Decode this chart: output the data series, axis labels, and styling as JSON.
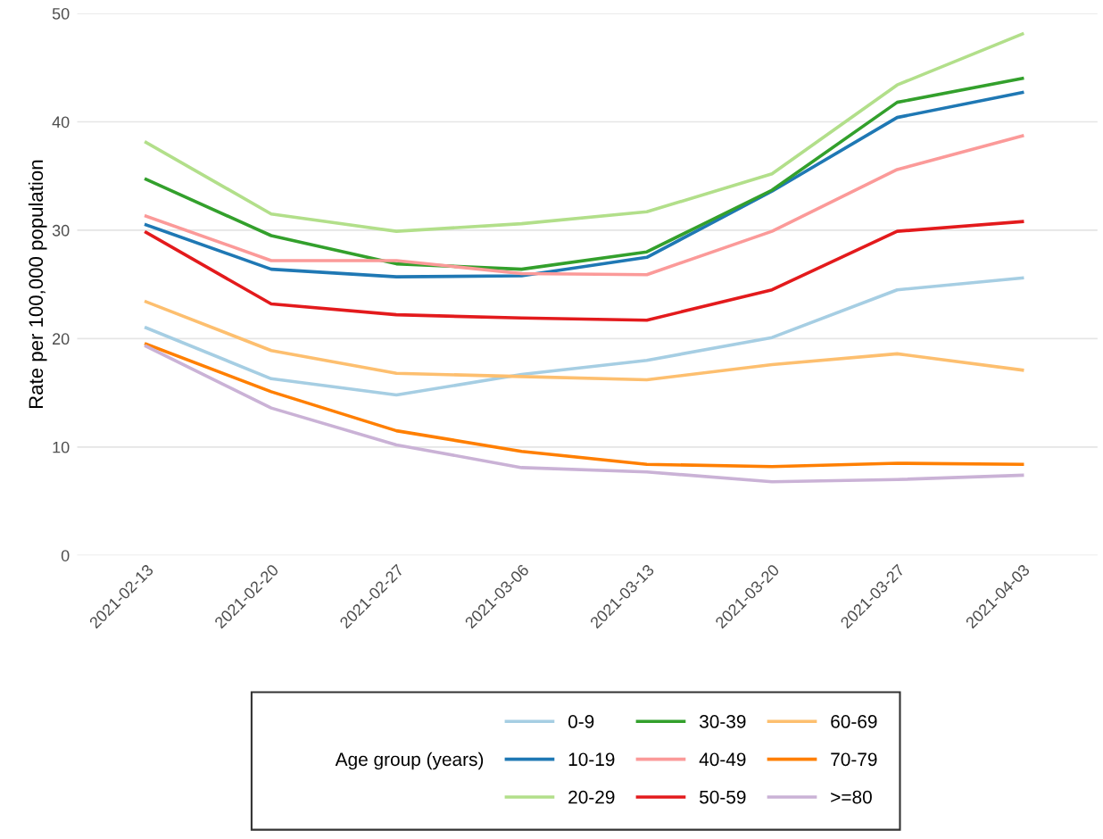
{
  "chart_data": {
    "type": "line",
    "ylabel": "Rate per 100,000 population",
    "legend_title": "Age group (years)",
    "categories": [
      "2021-02-13",
      "2021-02-20",
      "2021-02-27",
      "2021-03-06",
      "2021-03-13",
      "2021-03-20",
      "2021-03-27",
      "2021-04-03"
    ],
    "ylim": [
      0,
      50
    ],
    "yticks": [
      0,
      10,
      20,
      30,
      40,
      50
    ],
    "grid": "y",
    "legend": "bottom",
    "line_style": "solid",
    "marker": "none",
    "series": [
      {
        "name": "0-9",
        "color": "#a6cee3",
        "values": [
          21.0,
          16.3,
          14.8,
          16.7,
          18.0,
          20.1,
          24.5,
          25.6
        ]
      },
      {
        "name": "10-19",
        "color": "#1f78b4",
        "values": [
          30.5,
          26.4,
          25.7,
          25.8,
          27.5,
          33.6,
          40.4,
          42.7
        ]
      },
      {
        "name": "20-29",
        "color": "#b2df8a",
        "values": [
          38.1,
          31.5,
          29.9,
          30.6,
          31.7,
          35.2,
          43.4,
          48.1
        ]
      },
      {
        "name": "30-39",
        "color": "#33a02c",
        "values": [
          34.7,
          29.5,
          26.9,
          26.4,
          28.0,
          33.7,
          41.8,
          44.0
        ]
      },
      {
        "name": "40-49",
        "color": "#fb9a99",
        "values": [
          31.3,
          27.2,
          27.2,
          26.0,
          25.9,
          29.9,
          35.6,
          38.7
        ]
      },
      {
        "name": "50-59",
        "color": "#e31a1c",
        "values": [
          29.8,
          23.2,
          22.2,
          21.9,
          21.7,
          24.5,
          29.9,
          30.8
        ]
      },
      {
        "name": "60-69",
        "color": "#fdbf6f",
        "values": [
          23.4,
          18.9,
          16.8,
          16.5,
          16.2,
          17.6,
          18.6,
          17.1
        ]
      },
      {
        "name": "70-79",
        "color": "#ff7f00",
        "values": [
          19.5,
          15.1,
          11.5,
          9.6,
          8.4,
          8.2,
          8.5,
          8.4
        ]
      },
      {
        "name": ">=80",
        "color": "#cab2d6",
        "values": [
          19.3,
          13.6,
          10.2,
          8.1,
          7.7,
          6.8,
          7.0,
          7.4
        ]
      }
    ]
  }
}
